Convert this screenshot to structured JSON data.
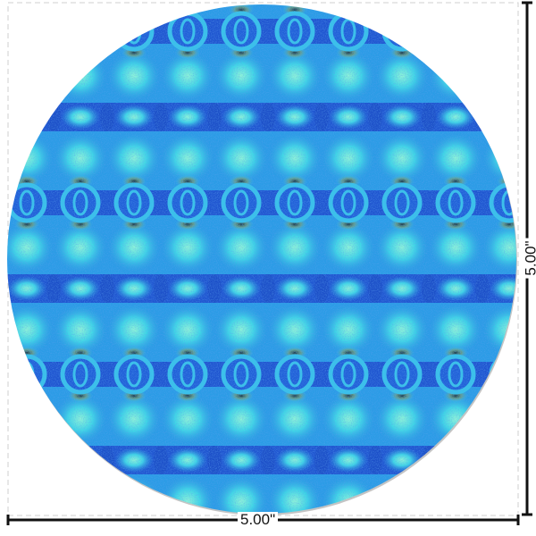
{
  "product": {
    "shape": "circle",
    "pattern_colors": {
      "base": "#1f5ad6",
      "ring": "#33c8e8",
      "highlight": "#7af0e0",
      "speckle": "#1a1a1a"
    }
  },
  "dimensions": {
    "width_label": "5.00\"",
    "height_label": "5.00\""
  }
}
